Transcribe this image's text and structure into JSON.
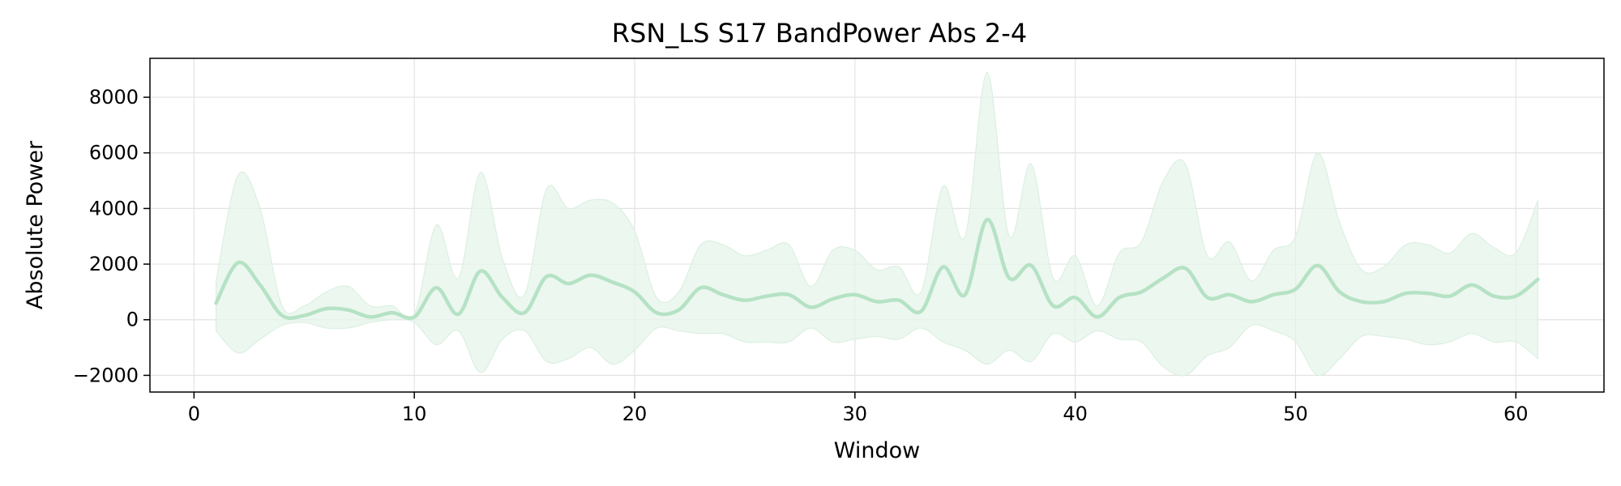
{
  "chart_data": {
    "type": "line",
    "title": "RSN_LS S17 BandPower Abs 2-4",
    "xlabel": "Window",
    "ylabel": "Absolute Power",
    "xlim": [
      -2,
      64
    ],
    "ylim": [
      -2600,
      9400
    ],
    "xticks": [
      0,
      10,
      20,
      30,
      40,
      50,
      60
    ],
    "xtick_labels": [
      "0",
      "10",
      "20",
      "30",
      "40",
      "50",
      "60"
    ],
    "yticks": [
      -2000,
      0,
      2000,
      4000,
      6000,
      8000
    ],
    "ytick_labels": [
      "−2000",
      "0",
      "2000",
      "4000",
      "6000",
      "8000"
    ],
    "grid": true,
    "colors": {
      "line": "#b5e2c4",
      "band": "#e6f4ea",
      "band_edge": "#d8eedf",
      "grid": "#e3e3e3"
    },
    "series": [
      {
        "x": [
          1,
          2,
          3,
          4,
          5,
          6,
          7,
          8,
          9,
          10,
          11,
          12,
          13,
          14,
          15,
          16,
          17,
          18,
          19,
          20,
          21,
          22,
          23,
          24,
          25,
          26,
          27,
          28,
          29,
          30,
          31,
          32,
          33,
          34,
          35,
          36,
          37,
          38,
          39,
          40,
          41,
          42,
          43,
          44,
          45,
          46,
          47,
          48,
          49,
          50,
          51,
          52,
          53,
          54,
          55,
          56,
          57,
          58,
          59,
          60,
          61
        ],
        "mean": [
          600,
          2050,
          1250,
          150,
          150,
          400,
          350,
          100,
          250,
          100,
          1150,
          200,
          1750,
          800,
          250,
          1550,
          1300,
          1600,
          1350,
          1000,
          250,
          350,
          1150,
          900,
          700,
          850,
          900,
          450,
          750,
          900,
          650,
          700,
          300,
          1900,
          900,
          3600,
          1500,
          1950,
          500,
          800,
          100,
          800,
          1000,
          1500,
          1850,
          800,
          900,
          650,
          900,
          1100,
          1950,
          1000,
          650,
          650,
          950,
          950,
          850,
          1250,
          850,
          850,
          1450
        ],
        "upper": [
          1400,
          5200,
          4000,
          500,
          500,
          1000,
          1200,
          500,
          500,
          200,
          3400,
          1500,
          5300,
          2200,
          900,
          4700,
          4000,
          4300,
          4200,
          3200,
          800,
          1000,
          2700,
          2700,
          2300,
          2500,
          2700,
          1200,
          2500,
          2500,
          1800,
          1900,
          1000,
          4800,
          3000,
          8900,
          3000,
          5600,
          1500,
          2300,
          500,
          2400,
          2800,
          5000,
          5600,
          2300,
          2800,
          1400,
          2500,
          3000,
          6000,
          3500,
          1800,
          1900,
          2700,
          2700,
          2400,
          3100,
          2600,
          2400,
          4300
        ],
        "lower": [
          -400,
          -1200,
          -700,
          -200,
          -100,
          -300,
          -300,
          -100,
          0,
          -100,
          -900,
          -400,
          -1900,
          -700,
          -400,
          -1500,
          -1400,
          -1000,
          -1600,
          -1100,
          -300,
          -400,
          -500,
          -500,
          -800,
          -800,
          -800,
          -300,
          -800,
          -700,
          -600,
          -700,
          -300,
          -800,
          -1100,
          -1600,
          -1100,
          -1500,
          -500,
          -800,
          -400,
          -700,
          -800,
          -1700,
          -2000,
          -1300,
          -1000,
          -200,
          -400,
          -800,
          -2000,
          -1400,
          -600,
          -600,
          -700,
          -900,
          -800,
          -500,
          -800,
          -800,
          -1400
        ]
      }
    ]
  }
}
